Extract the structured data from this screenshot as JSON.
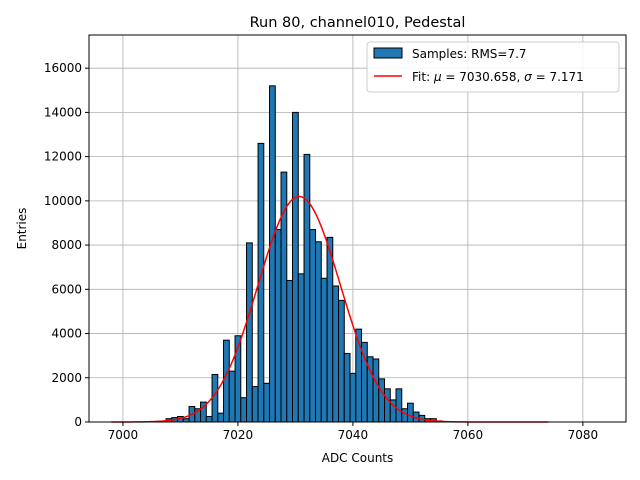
{
  "chart_data": {
    "type": "bar",
    "title": "Run 80, channel010, Pedestal",
    "xlabel": "ADC Counts",
    "ylabel": "Entries",
    "xlim": [
      6994.1,
      7087.5
    ],
    "ylim": [
      0,
      17500
    ],
    "xticks": [
      7000,
      7020,
      7040,
      7060,
      7080
    ],
    "yticks": [
      0,
      2000,
      4000,
      6000,
      8000,
      10000,
      12000,
      14000,
      16000
    ],
    "grid": true,
    "legend_position": "top-right",
    "histogram": {
      "name": "Samples: RMS=7.7",
      "color": "#1f77b4",
      "bin_width": 1,
      "x": [
        7008,
        7009,
        7010,
        7011,
        7012,
        7013,
        7014,
        7015,
        7016,
        7017,
        7018,
        7019,
        7020,
        7021,
        7022,
        7023,
        7024,
        7025,
        7026,
        7027,
        7028,
        7029,
        7030,
        7031,
        7032,
        7033,
        7034,
        7035,
        7036,
        7037,
        7038,
        7039,
        7040,
        7041,
        7042,
        7043,
        7044,
        7045,
        7046,
        7047,
        7048,
        7049,
        7050,
        7051,
        7052,
        7053,
        7054,
        7055
      ],
      "values": [
        150,
        200,
        250,
        150,
        700,
        600,
        900,
        250,
        2150,
        400,
        3700,
        2300,
        3900,
        1100,
        8100,
        1600,
        12600,
        1750,
        15200,
        8700,
        11300,
        6400,
        14000,
        6700,
        12100,
        8700,
        8150,
        6500,
        8350,
        6150,
        5500,
        3100,
        2200,
        4200,
        3600,
        2950,
        2850,
        1950,
        1500,
        1000,
        1500,
        600,
        850,
        450,
        300,
        150,
        150,
        50
      ]
    },
    "fit": {
      "name_prefix": "Fit: ",
      "name_mu": "μ",
      "name_mu_value": " = 7030.658, ",
      "name_sigma": "σ",
      "name_sigma_value": " = 7.171",
      "color": "#ff0000",
      "mu": 7030.658,
      "sigma": 7.171,
      "amplitude": 10200,
      "x_range": [
        6998,
        7074
      ]
    }
  }
}
